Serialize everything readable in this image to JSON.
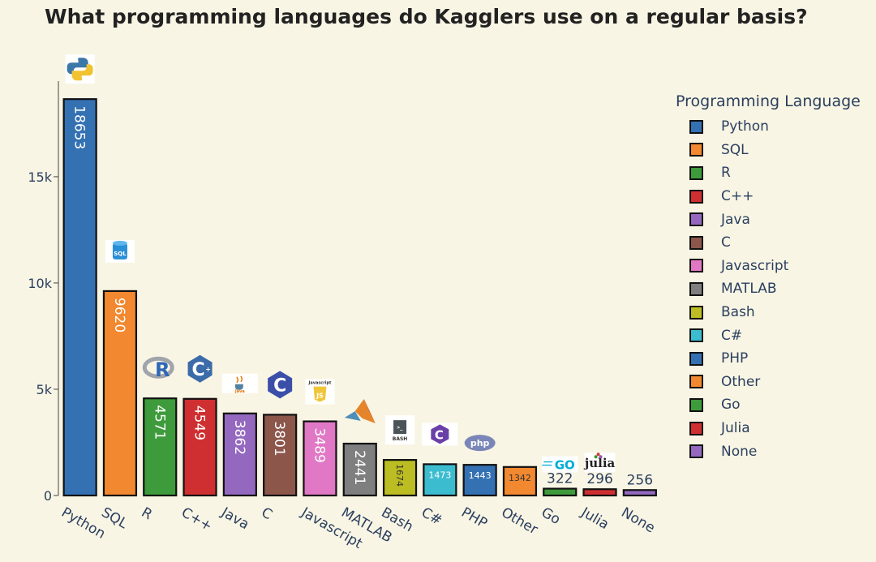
{
  "title": "What programming languages do Kagglers use on a regular basis?",
  "chart_data": {
    "type": "bar",
    "categories": [
      "Python",
      "SQL",
      "R",
      "C++",
      "Java",
      "C",
      "Javascript",
      "MATLAB",
      "Bash",
      "C#",
      "PHP",
      "Other",
      "Go",
      "Julia",
      "None"
    ],
    "values": [
      18653,
      9620,
      4571,
      4549,
      3862,
      3801,
      3489,
      2441,
      1674,
      1473,
      1443,
      1342,
      322,
      296,
      256
    ],
    "colors": [
      "#3471b3",
      "#f2882f",
      "#3e9b3b",
      "#cf2f30",
      "#9468bf",
      "#8c564b",
      "#e078c5",
      "#7f7f7f",
      "#bcbd22",
      "#3cbccf",
      "#3471b3",
      "#f2882f",
      "#3e9b3b",
      "#cf2f30",
      "#9468bf"
    ],
    "icons": [
      "python-logo-icon",
      "sql-database-icon",
      "r-logo-icon",
      "cplusplus-logo-icon",
      "java-logo-icon",
      "c-logo-icon",
      "javascript-logo-icon",
      "matlab-logo-icon",
      "bash-logo-icon",
      "csharp-logo-icon",
      "php-logo-icon",
      "",
      "go-logo-icon",
      "julia-logo-icon",
      ""
    ],
    "ylim": [
      0,
      19500
    ],
    "ytick_values": [
      0,
      5000,
      10000,
      15000
    ],
    "ytick_labels": [
      "0",
      "5k",
      "10k",
      "15k"
    ],
    "legend_title": "Programming Language",
    "legend_placement": "right",
    "grid": false
  },
  "icon_text": {
    "sql": "SQL",
    "r": "R",
    "c": "C",
    "cpp": "C++",
    "java": "Java",
    "js": "Javascript",
    "bash": "BASH",
    "php": "php",
    "go": "GO",
    "julia": "julia"
  }
}
